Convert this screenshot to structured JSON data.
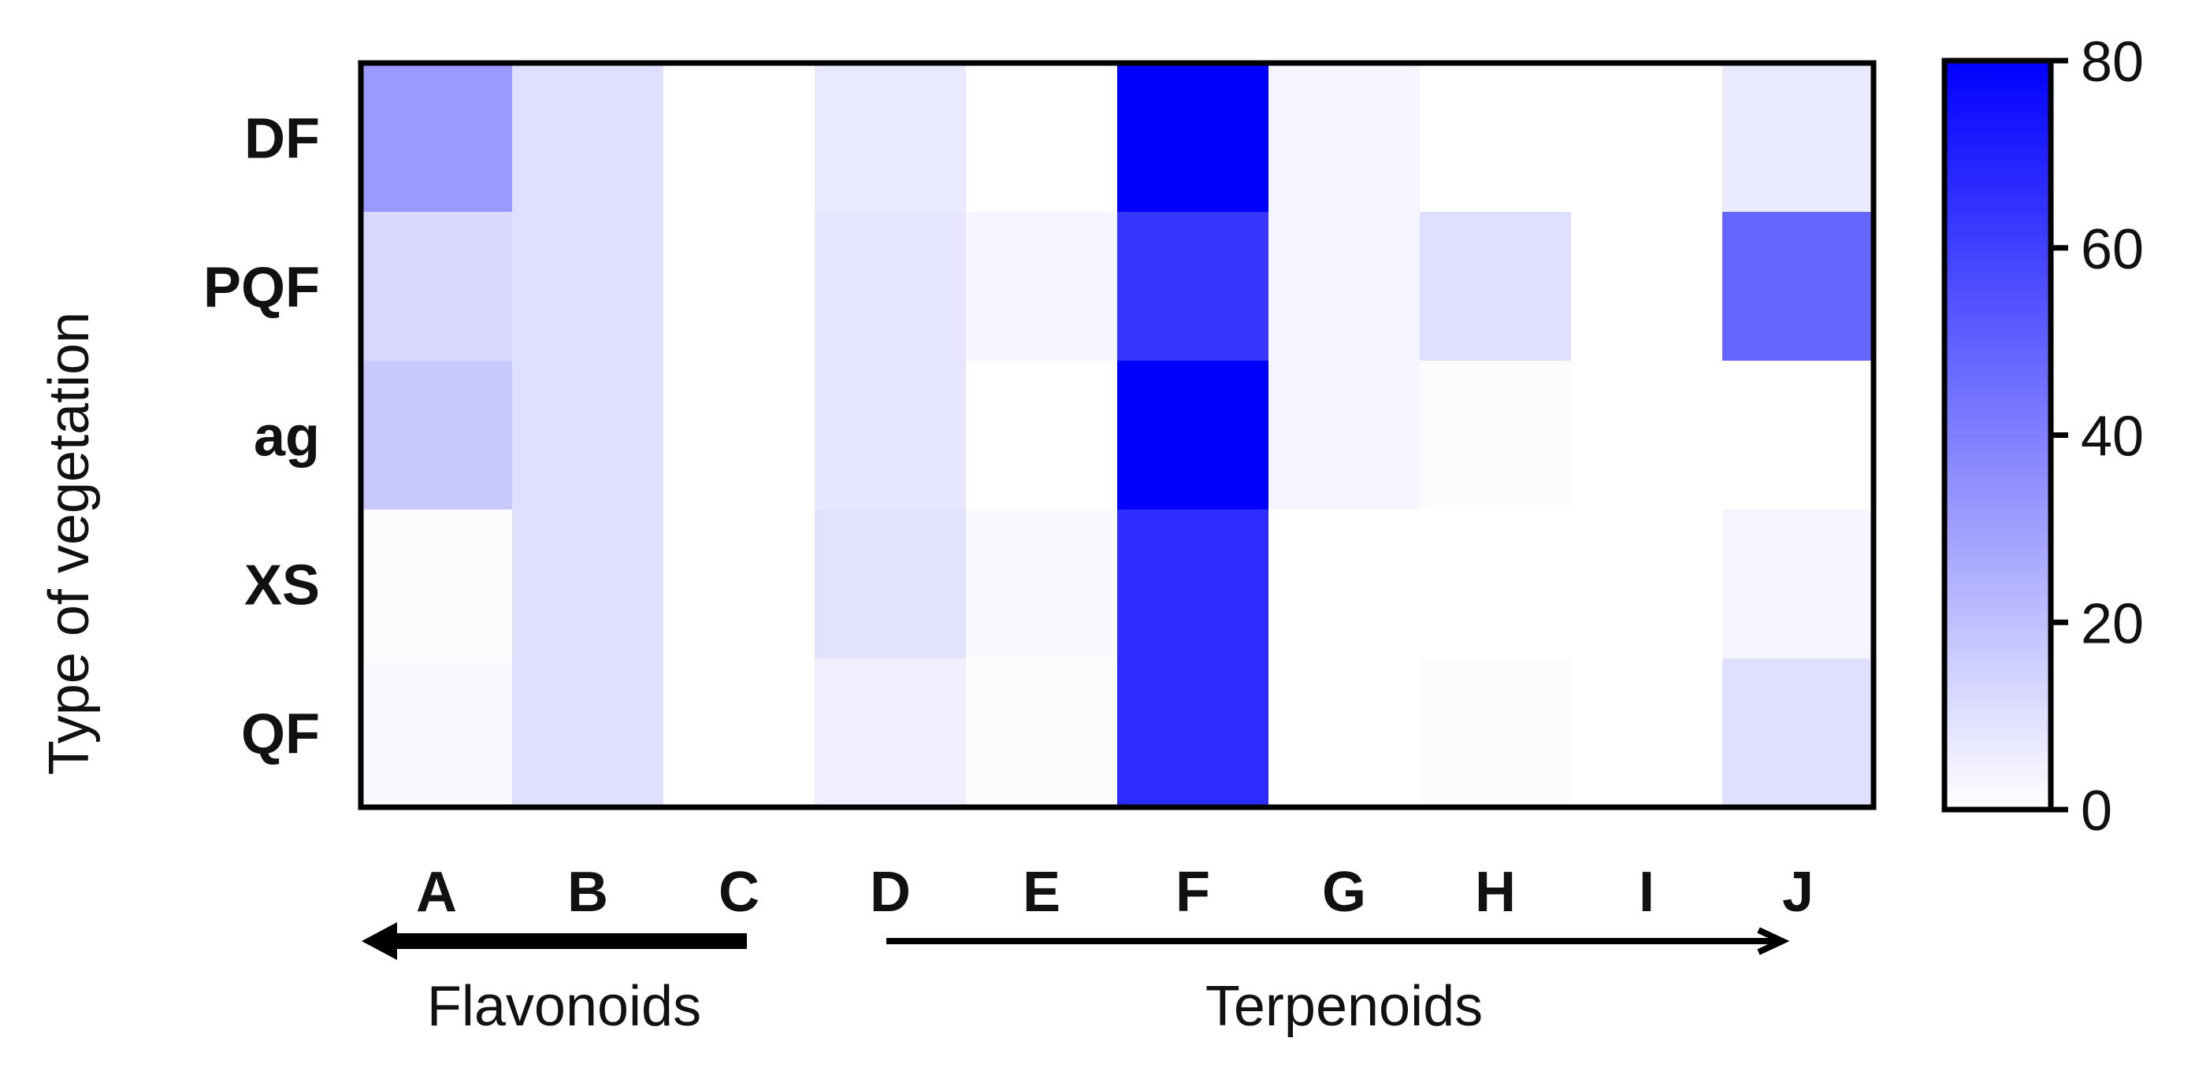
{
  "chart_data": {
    "type": "heatmap",
    "ylabel": "Type of vegetation",
    "columns": [
      "A",
      "B",
      "C",
      "D",
      "E",
      "F",
      "G",
      "H",
      "I",
      "J"
    ],
    "rows": [
      "DF",
      "PQF",
      "ag",
      "XS",
      "QF"
    ],
    "values": [
      [
        32,
        10,
        0,
        7,
        0,
        80,
        3,
        0,
        0,
        7
      ],
      [
        12,
        10,
        0,
        8,
        3,
        63,
        3,
        10,
        0,
        48
      ],
      [
        17,
        10,
        0,
        8,
        0,
        80,
        3,
        1,
        0,
        0
      ],
      [
        1,
        10,
        0,
        9,
        2,
        66,
        0,
        0,
        0,
        3
      ],
      [
        2,
        10,
        0,
        5,
        1,
        66,
        0,
        1,
        0,
        10
      ]
    ],
    "colorbar": {
      "min": 0,
      "max": 80,
      "ticks": [
        "0",
        "20",
        "40",
        "60",
        "80"
      ],
      "color_low": "#ffffff",
      "color_high": "#0000ff"
    },
    "groups": [
      {
        "label": "Flavonoids",
        "from": "C",
        "to": "A",
        "arrow": "left"
      },
      {
        "label": "Terpenoids",
        "from": "D",
        "to": "J",
        "arrow": "right"
      }
    ]
  }
}
